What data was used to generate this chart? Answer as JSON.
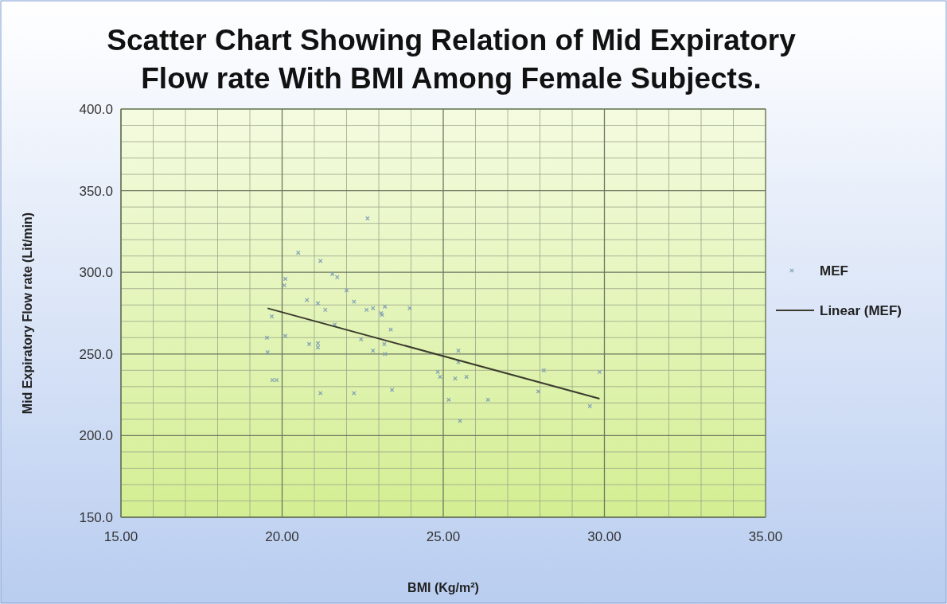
{
  "chart_data": {
    "type": "scatter",
    "title": "Scatter Chart Showing Relation of Mid Expiratory Flow rate With BMI Among Female Subjects.",
    "xlabel": "BMI (Kg/m²)",
    "ylabel": "Mid Expiratory Flow rate (Lit/min)",
    "xlim": [
      15,
      35
    ],
    "xticks": [
      {
        "value": 15,
        "label": "15.00"
      },
      {
        "value": 20,
        "label": "20.00"
      },
      {
        "value": 25,
        "label": "25.00"
      },
      {
        "value": 30,
        "label": "30.00"
      },
      {
        "value": 35,
        "label": "35.00"
      }
    ],
    "ylim": [
      150,
      400
    ],
    "yticks": [
      {
        "value": 150,
        "label": "150.0"
      },
      {
        "value": 200,
        "label": "200.0"
      },
      {
        "value": 250,
        "label": "250.0"
      },
      {
        "value": 300,
        "label": "300.0"
      },
      {
        "value": 350,
        "label": "350.0"
      },
      {
        "value": 400,
        "label": "400.0"
      }
    ],
    "grid": true,
    "legend": "right",
    "series": [
      {
        "name": "MEF",
        "marker": "cross",
        "color": "#7f9fb4",
        "x": [
          19.53,
          19.55,
          19.68,
          19.7,
          19.83,
          20.5,
          20.1,
          20.07,
          20.1,
          21.19,
          20.77,
          21.11,
          21.34,
          21.56,
          21.71,
          22.0,
          22.23,
          22.62,
          22.82,
          23.19,
          23.07,
          23.1,
          23.96,
          21.63,
          23.37,
          22.45,
          20.84,
          21.11,
          21.11,
          22.82,
          23.19,
          23.17,
          21.19,
          22.23,
          23.41,
          22.65,
          24.83,
          24.9,
          25.37,
          25.17,
          25.52,
          25.47,
          25.47,
          25.72,
          26.39,
          28.12,
          27.95,
          29.85,
          29.55
        ],
        "values": [
          260,
          251,
          273,
          234,
          234,
          312,
          296,
          292,
          261,
          307,
          283,
          281,
          277,
          299,
          297,
          289,
          282,
          277,
          278,
          279,
          275,
          274,
          278,
          268,
          265,
          259,
          256,
          256.5,
          254,
          252,
          250,
          256,
          226,
          226,
          228,
          333,
          239,
          236,
          235,
          222,
          209,
          252,
          245,
          236,
          222,
          240,
          227,
          239,
          218
        ]
      },
      {
        "name": "Linear (MEF)",
        "type": "line",
        "color": "#3b3b2e",
        "line_style": "solid",
        "x": [
          19.55,
          29.85
        ],
        "values": [
          278,
          222.6
        ]
      }
    ]
  }
}
